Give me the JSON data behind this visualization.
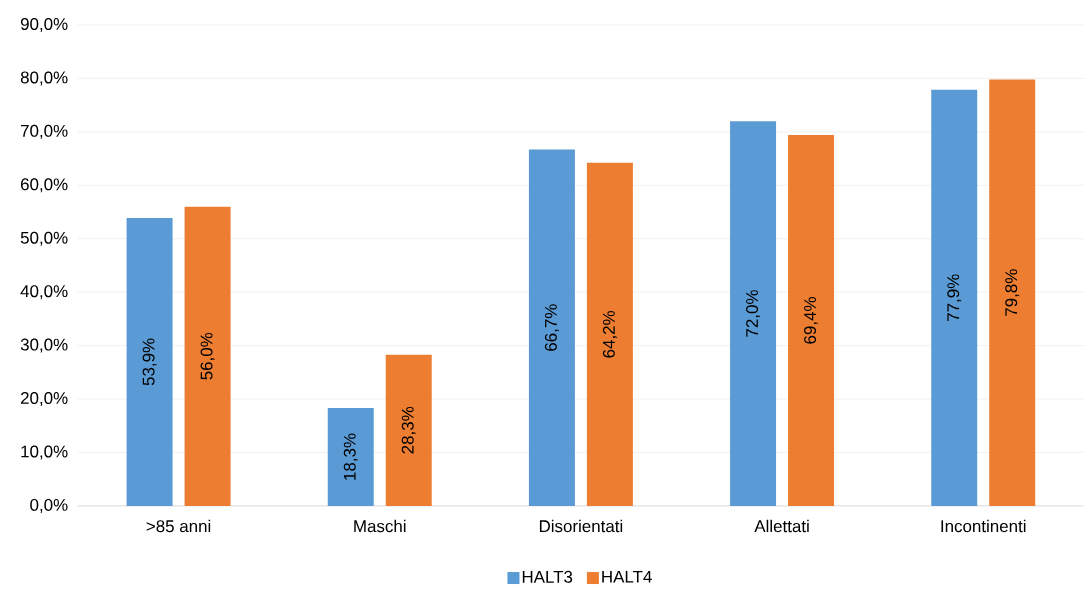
{
  "chart_data": {
    "type": "bar",
    "categories": [
      ">85 anni",
      "Maschi",
      "Disorientati",
      "Allettati",
      "Incontinenti"
    ],
    "series": [
      {
        "name": "HALT3",
        "color": "#5b9bd5",
        "values": [
          53.9,
          18.3,
          66.7,
          72.0,
          77.9
        ],
        "value_labels": [
          "53,9%",
          "18,3%",
          "66,7%",
          "72,0%",
          "77,9%"
        ]
      },
      {
        "name": "HALT4",
        "color": "#ed7d31",
        "values": [
          56.0,
          28.3,
          64.2,
          69.4,
          79.8
        ],
        "value_labels": [
          "56,0%",
          "28,3%",
          "64,2%",
          "69,4%",
          "79,8%"
        ]
      }
    ],
    "ylim": [
      0,
      90
    ],
    "yticks": [
      {
        "value": 0,
        "label": "0,0%"
      },
      {
        "value": 10,
        "label": "10,0%"
      },
      {
        "value": 20,
        "label": "20,0%"
      },
      {
        "value": 30,
        "label": "30,0%"
      },
      {
        "value": 40,
        "label": "40,0%"
      },
      {
        "value": 50,
        "label": "50,0%"
      },
      {
        "value": 60,
        "label": "60,0%"
      },
      {
        "value": 70,
        "label": "70,0%"
      },
      {
        "value": 80,
        "label": "80,0%"
      },
      {
        "value": 90,
        "label": "90,0%"
      }
    ],
    "grid": "y",
    "legend": "bottom"
  }
}
